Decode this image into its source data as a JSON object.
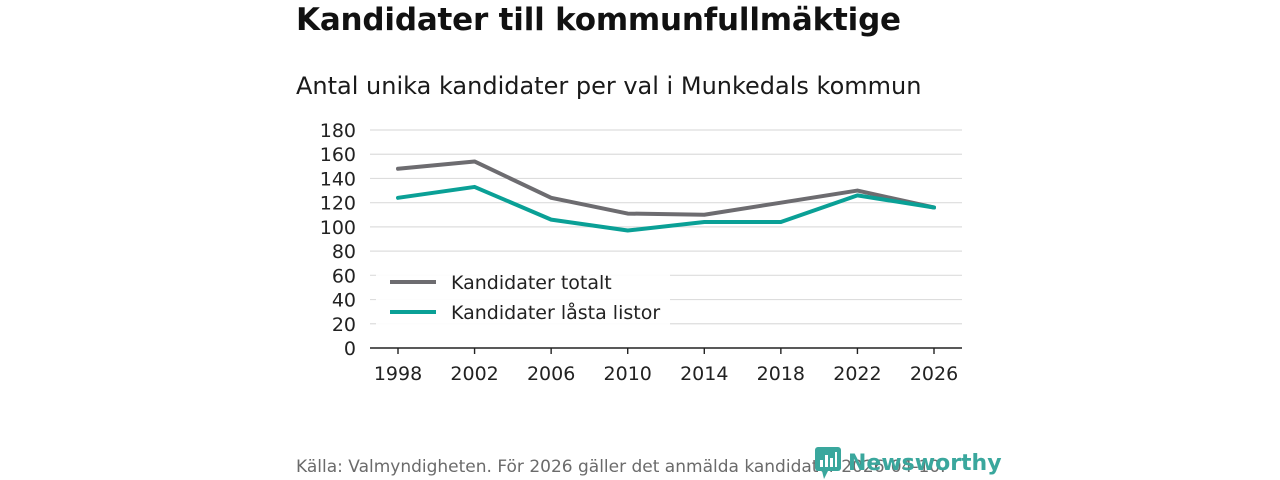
{
  "header": {
    "title": "Kandidater till kommunfullmäktige",
    "subtitle": "Antal unika kandidater per val i Munkedals kommun"
  },
  "footer": {
    "source": "Källa: Valmyndigheten. För 2026 gäller det anmälda kandidater 2026-04-10.",
    "logo_text": "Newsworthy"
  },
  "colors": {
    "series_total": "#6d6c70",
    "series_locked": "#0aa096",
    "grid": "#dddddd",
    "axis": "#222222",
    "brand": "#3aa79d"
  },
  "chart_data": {
    "type": "line",
    "title": "Antal unika kandidater per val i Munkedals kommun",
    "xlabel": "",
    "ylabel": "",
    "categories": [
      "1998",
      "2002",
      "2006",
      "2010",
      "2014",
      "2018",
      "2022",
      "2026"
    ],
    "y_ticks": [
      "0",
      "20",
      "40",
      "60",
      "80",
      "100",
      "120",
      "140",
      "160",
      "180"
    ],
    "ylim": [
      0,
      180
    ],
    "grid": true,
    "legend_position": "bottom-left",
    "series": [
      {
        "name": "Kandidater totalt",
        "color": "#6d6c70",
        "values": [
          148,
          154,
          124,
          111,
          110,
          120,
          130,
          116
        ]
      },
      {
        "name": "Kandidater låsta listor",
        "color": "#0aa096",
        "values": [
          124,
          133,
          106,
          97,
          104,
          104,
          126,
          116
        ]
      }
    ]
  }
}
